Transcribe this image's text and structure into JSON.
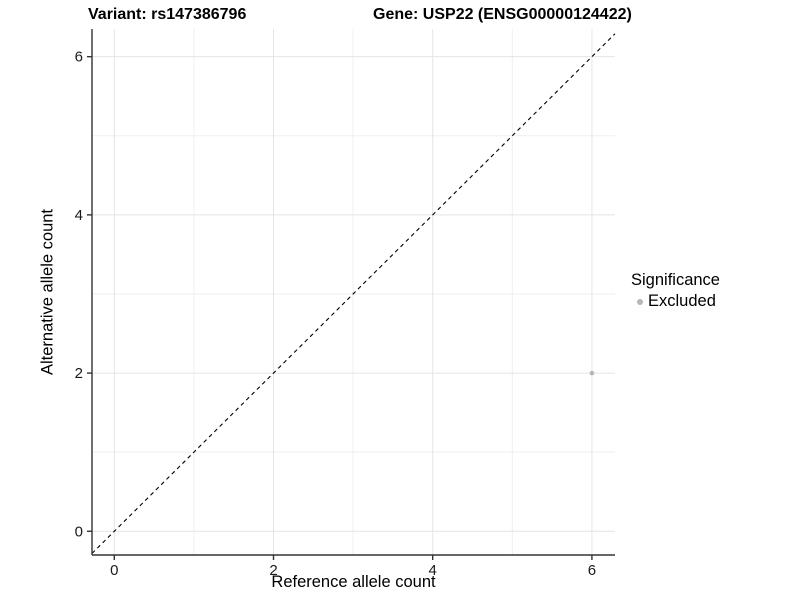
{
  "titles": {
    "left": "Variant: rs147386796",
    "right": "Gene: USP22 (ENSG00000124422)"
  },
  "chart_data": {
    "type": "scatter",
    "title": "Variant: rs147386796    Gene: USP22 (ENSG00000124422)",
    "xlabel": "Reference allele count",
    "ylabel": "Alternative allele count",
    "xlim": [
      -0.28,
      6.29
    ],
    "ylim": [
      -0.3,
      6.35
    ],
    "xticks": [
      0,
      2,
      4,
      6
    ],
    "yticks": [
      0,
      2,
      4,
      6
    ],
    "xticks_minor": [
      1,
      3,
      5
    ],
    "yticks_minor": [
      1,
      3,
      5
    ],
    "grid": "on",
    "identity_line": {
      "style": "dashed",
      "color": "#000000",
      "from": -0.28,
      "to": 6.29
    },
    "series": [
      {
        "name": "Excluded",
        "color": "#b7b7b7",
        "points": [
          {
            "x": 6,
            "y": 2
          }
        ]
      }
    ],
    "legend": {
      "title": "Significance",
      "position": "right",
      "entries": [
        {
          "label": "Excluded",
          "color": "#b7b7b7"
        }
      ]
    },
    "colors": {
      "background": "#ffffff",
      "grid_major": "#e4e4e4",
      "grid_minor": "#efefef",
      "axis_line": "#333333",
      "tick_text": "#1a1a1a",
      "point": "#b7b7b7"
    }
  }
}
